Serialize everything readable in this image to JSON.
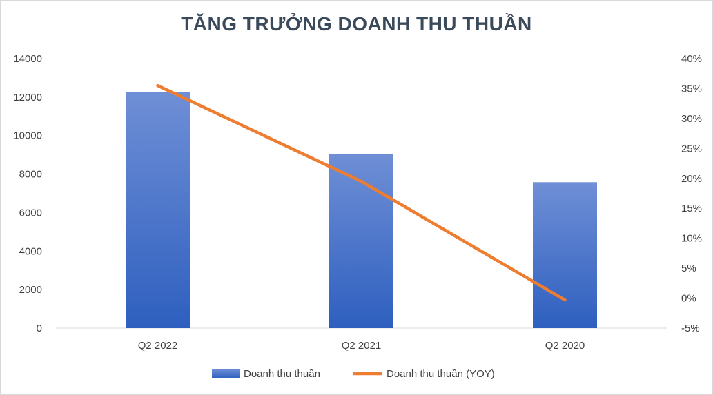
{
  "chart_data": {
    "type": "bar",
    "title": "TĂNG TRƯỞNG DOANH THU THUẦN",
    "categories": [
      "Q2 2022",
      "Q2 2021",
      "Q2 2020"
    ],
    "series": [
      {
        "name": "Doanh thu thuần",
        "type": "bar",
        "axis": "left",
        "color": "#4472c4",
        "values": [
          12250,
          9050,
          7580
        ]
      },
      {
        "name": "Doanh thu thuần (YOY)",
        "type": "line",
        "axis": "right",
        "color": "#ed7d31",
        "values": [
          0.355,
          0.195,
          -0.003
        ]
      }
    ],
    "y_left": {
      "ylim": [
        0,
        14000
      ],
      "ticks": [
        "0",
        "2000",
        "4000",
        "6000",
        "8000",
        "10000",
        "12000",
        "14000"
      ]
    },
    "y_right": {
      "ylim": [
        -0.05,
        0.4
      ],
      "ticks": [
        "-5%",
        "0%",
        "5%",
        "10%",
        "15%",
        "20%",
        "25%",
        "30%",
        "35%",
        "40%"
      ]
    },
    "grid": false,
    "legend": "bottom-center"
  }
}
